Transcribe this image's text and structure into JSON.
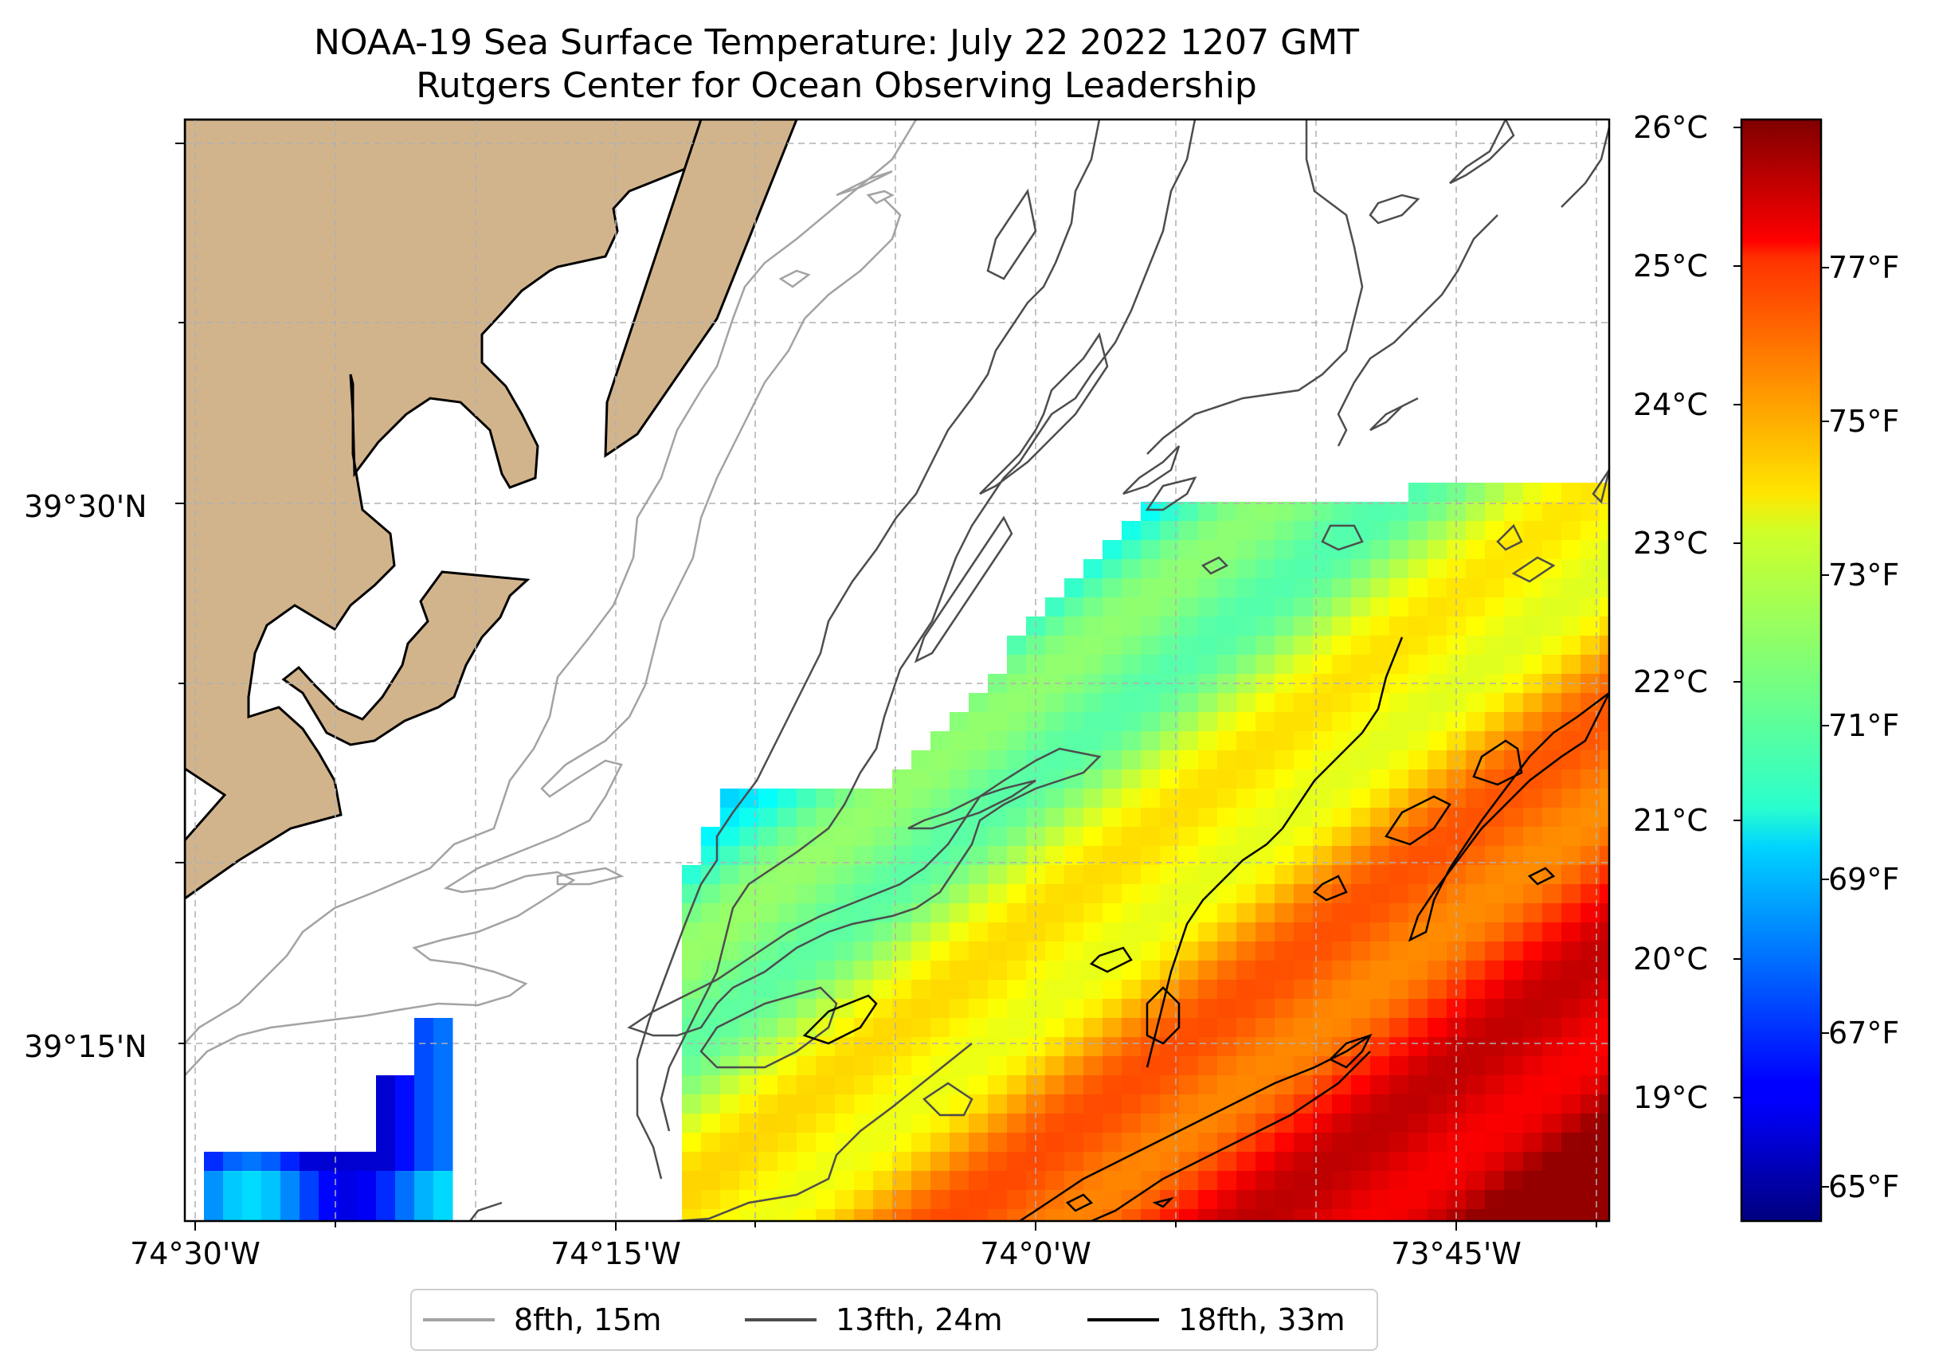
{
  "title": {
    "line1": "NOAA-19 Sea Surface Temperature: July 22 2022 1207 GMT",
    "line2": "Rutgers Center for Ocean Observing Leadership"
  },
  "axes": {
    "lat_labels": [
      "39°30'N",
      "39°15'N"
    ],
    "lon_labels": [
      "74°30'W",
      "74°15'W",
      "74°0'W",
      "73°45'W"
    ]
  },
  "colorbar": {
    "celsius_labels": [
      "26°C",
      "25°C",
      "24°C",
      "23°C",
      "22°C",
      "21°C",
      "20°C",
      "19°C"
    ],
    "fahrenheit_labels": [
      "77°F",
      "75°F",
      "73°F",
      "71°F",
      "69°F",
      "67°F",
      "65°F"
    ],
    "range_c": [
      18.1,
      26.05
    ],
    "colormap": "jet"
  },
  "legend": {
    "items": [
      {
        "label": "8fth, 15m",
        "color": "#a3a3a3"
      },
      {
        "label": "13fth, 24m",
        "color": "#4d4d4d"
      },
      {
        "label": "18fth, 33m",
        "color": "#000000"
      }
    ]
  },
  "colors": {
    "land": "#d2b48c",
    "grid": "#b0b0b0"
  }
}
